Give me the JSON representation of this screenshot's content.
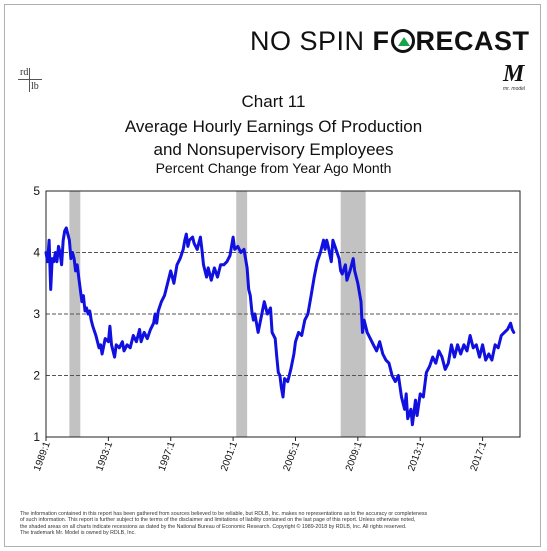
{
  "brand": {
    "part1": "NO SPIN",
    "part2_pre": "F",
    "part2_post": "RECAST",
    "logo_left": "rd",
    "logo_right": "lb",
    "mr_model_mark": "M",
    "mr_model_sub": "mr. model"
  },
  "chart_data": {
    "type": "line",
    "title": "Chart 11",
    "subtitle_line1": "Average Hourly Earnings Of Production",
    "subtitle_line2": "and Nonsupervisory Employees",
    "subtitle_line3": "Percent Change from Year Ago Month",
    "xlabel": "",
    "ylabel": "",
    "ylim": [
      1,
      5
    ],
    "xlim": [
      1989.0,
      2019.4
    ],
    "yticks": [
      "1",
      "2",
      "3",
      "4",
      "5"
    ],
    "ytick_values": [
      1,
      2,
      3,
      4,
      5
    ],
    "xticks": [
      "1989:1",
      "1993:1",
      "1997:1",
      "2001:1",
      "2005:1",
      "2009:1",
      "2013:1",
      "2017:1"
    ],
    "xtick_values": [
      1989,
      1993,
      1997,
      2001,
      2005,
      2009,
      2013,
      2017
    ],
    "grid": true,
    "line_color": "#1010e0",
    "recession_color": "#c2c2c2",
    "recessions": [
      [
        1990.5,
        1991.2
      ],
      [
        2001.2,
        2001.9
      ],
      [
        2007.9,
        2009.5
      ]
    ],
    "series": [
      {
        "values": [
          [
            1989.0,
            4.0
          ],
          [
            1989.1,
            3.85
          ],
          [
            1989.2,
            4.2
          ],
          [
            1989.3,
            3.4
          ],
          [
            1989.4,
            3.9
          ],
          [
            1989.5,
            3.85
          ],
          [
            1989.6,
            4.0
          ],
          [
            1989.7,
            3.85
          ],
          [
            1989.8,
            4.1
          ],
          [
            1989.9,
            4.0
          ],
          [
            1990.0,
            3.8
          ],
          [
            1990.1,
            4.2
          ],
          [
            1990.2,
            4.35
          ],
          [
            1990.3,
            4.4
          ],
          [
            1990.4,
            4.3
          ],
          [
            1990.5,
            4.2
          ],
          [
            1990.6,
            3.9
          ],
          [
            1990.7,
            4.0
          ],
          [
            1990.8,
            3.9
          ],
          [
            1990.9,
            3.7
          ],
          [
            1991.0,
            3.8
          ],
          [
            1991.1,
            3.6
          ],
          [
            1991.2,
            3.4
          ],
          [
            1991.3,
            3.2
          ],
          [
            1991.4,
            3.3
          ],
          [
            1991.5,
            3.05
          ],
          [
            1991.6,
            3.1
          ],
          [
            1991.7,
            3.0
          ],
          [
            1991.8,
            3.05
          ],
          [
            1991.9,
            2.9
          ],
          [
            1992.0,
            2.8
          ],
          [
            1992.2,
            2.65
          ],
          [
            1992.4,
            2.45
          ],
          [
            1992.5,
            2.5
          ],
          [
            1992.6,
            2.35
          ],
          [
            1992.8,
            2.6
          ],
          [
            1993.0,
            2.55
          ],
          [
            1993.1,
            2.8
          ],
          [
            1993.2,
            2.5
          ],
          [
            1993.4,
            2.3
          ],
          [
            1993.5,
            2.5
          ],
          [
            1993.7,
            2.45
          ],
          [
            1993.9,
            2.55
          ],
          [
            1994.0,
            2.4
          ],
          [
            1994.2,
            2.5
          ],
          [
            1994.4,
            2.45
          ],
          [
            1994.6,
            2.65
          ],
          [
            1994.8,
            2.55
          ],
          [
            1995.0,
            2.75
          ],
          [
            1995.1,
            2.55
          ],
          [
            1995.3,
            2.7
          ],
          [
            1995.5,
            2.6
          ],
          [
            1995.7,
            2.75
          ],
          [
            1995.9,
            2.85
          ],
          [
            1996.0,
            3.0
          ],
          [
            1996.1,
            2.85
          ],
          [
            1996.2,
            3.05
          ],
          [
            1996.4,
            3.2
          ],
          [
            1996.6,
            3.3
          ],
          [
            1996.8,
            3.5
          ],
          [
            1997.0,
            3.7
          ],
          [
            1997.2,
            3.5
          ],
          [
            1997.4,
            3.8
          ],
          [
            1997.6,
            3.9
          ],
          [
            1997.8,
            4.05
          ],
          [
            1997.9,
            4.2
          ],
          [
            1998.0,
            4.3
          ],
          [
            1998.1,
            4.1
          ],
          [
            1998.2,
            4.2
          ],
          [
            1998.4,
            4.25
          ],
          [
            1998.5,
            4.15
          ],
          [
            1998.7,
            4.05
          ],
          [
            1998.9,
            4.25
          ],
          [
            1999.0,
            4.05
          ],
          [
            1999.1,
            3.8
          ],
          [
            1999.3,
            3.6
          ],
          [
            1999.4,
            3.75
          ],
          [
            1999.6,
            3.55
          ],
          [
            1999.8,
            3.75
          ],
          [
            2000.0,
            3.6
          ],
          [
            2000.2,
            3.8
          ],
          [
            2000.4,
            3.8
          ],
          [
            2000.6,
            3.85
          ],
          [
            2000.8,
            3.95
          ],
          [
            2001.0,
            4.25
          ],
          [
            2001.1,
            4.05
          ],
          [
            2001.3,
            4.1
          ],
          [
            2001.5,
            4.0
          ],
          [
            2001.7,
            4.05
          ],
          [
            2001.9,
            3.75
          ],
          [
            2002.0,
            3.4
          ],
          [
            2002.1,
            3.3
          ],
          [
            2002.2,
            3.05
          ],
          [
            2002.3,
            2.9
          ],
          [
            2002.4,
            3.0
          ],
          [
            2002.6,
            2.7
          ],
          [
            2002.8,
            2.95
          ],
          [
            2003.0,
            3.2
          ],
          [
            2003.2,
            3.0
          ],
          [
            2003.4,
            3.1
          ],
          [
            2003.5,
            2.7
          ],
          [
            2003.7,
            2.6
          ],
          [
            2003.8,
            2.3
          ],
          [
            2003.9,
            2.05
          ],
          [
            2004.0,
            2.0
          ],
          [
            2004.1,
            1.8
          ],
          [
            2004.2,
            1.65
          ],
          [
            2004.3,
            1.95
          ],
          [
            2004.5,
            1.9
          ],
          [
            2004.7,
            2.1
          ],
          [
            2004.9,
            2.35
          ],
          [
            2005.0,
            2.55
          ],
          [
            2005.2,
            2.7
          ],
          [
            2005.4,
            2.65
          ],
          [
            2005.6,
            2.9
          ],
          [
            2005.8,
            3.0
          ],
          [
            2006.0,
            3.3
          ],
          [
            2006.2,
            3.6
          ],
          [
            2006.4,
            3.85
          ],
          [
            2006.6,
            4.0
          ],
          [
            2006.8,
            4.2
          ],
          [
            2006.9,
            4.05
          ],
          [
            2007.0,
            4.2
          ],
          [
            2007.1,
            4.1
          ],
          [
            2007.3,
            3.85
          ],
          [
            2007.4,
            4.2
          ],
          [
            2007.6,
            4.05
          ],
          [
            2007.8,
            3.9
          ],
          [
            2007.9,
            3.7
          ],
          [
            2008.0,
            3.65
          ],
          [
            2008.2,
            3.8
          ],
          [
            2008.3,
            3.55
          ],
          [
            2008.5,
            3.7
          ],
          [
            2008.7,
            3.9
          ],
          [
            2008.8,
            3.7
          ],
          [
            2009.0,
            3.5
          ],
          [
            2009.2,
            3.2
          ],
          [
            2009.3,
            2.7
          ],
          [
            2009.4,
            2.9
          ],
          [
            2009.6,
            2.7
          ],
          [
            2009.8,
            2.6
          ],
          [
            2010.0,
            2.5
          ],
          [
            2010.2,
            2.4
          ],
          [
            2010.4,
            2.55
          ],
          [
            2010.6,
            2.35
          ],
          [
            2010.8,
            2.25
          ],
          [
            2011.0,
            2.2
          ],
          [
            2011.2,
            2.0
          ],
          [
            2011.4,
            1.9
          ],
          [
            2011.6,
            2.0
          ],
          [
            2011.8,
            1.65
          ],
          [
            2012.0,
            1.45
          ],
          [
            2012.1,
            1.7
          ],
          [
            2012.2,
            1.3
          ],
          [
            2012.4,
            1.45
          ],
          [
            2012.5,
            1.2
          ],
          [
            2012.7,
            1.6
          ],
          [
            2012.8,
            1.35
          ],
          [
            2013.0,
            1.7
          ],
          [
            2013.2,
            1.65
          ],
          [
            2013.4,
            2.05
          ],
          [
            2013.6,
            2.15
          ],
          [
            2013.8,
            2.3
          ],
          [
            2014.0,
            2.2
          ],
          [
            2014.2,
            2.4
          ],
          [
            2014.4,
            2.3
          ],
          [
            2014.6,
            2.1
          ],
          [
            2014.8,
            2.2
          ],
          [
            2015.0,
            2.5
          ],
          [
            2015.2,
            2.3
          ],
          [
            2015.4,
            2.5
          ],
          [
            2015.6,
            2.35
          ],
          [
            2015.8,
            2.5
          ],
          [
            2016.0,
            2.4
          ],
          [
            2016.2,
            2.65
          ],
          [
            2016.4,
            2.45
          ],
          [
            2016.6,
            2.5
          ],
          [
            2016.8,
            2.3
          ],
          [
            2017.0,
            2.5
          ],
          [
            2017.2,
            2.25
          ],
          [
            2017.4,
            2.35
          ],
          [
            2017.6,
            2.25
          ],
          [
            2017.8,
            2.5
          ],
          [
            2018.0,
            2.45
          ],
          [
            2018.2,
            2.65
          ],
          [
            2018.4,
            2.7
          ],
          [
            2018.6,
            2.75
          ],
          [
            2018.8,
            2.85
          ],
          [
            2018.9,
            2.75
          ],
          [
            2019.0,
            2.7
          ]
        ]
      }
    ]
  },
  "footnote": {
    "line1": "The information contained in this report has been gathered from sources believed to be reliable, but RDLB, Inc. makes no representations as to the accuracy or completeness",
    "line2": "of such information. This report is further subject to the terms of the disclaimer and limitations of liability contained on the last page of this report.  Unless otherwise noted,",
    "line3": "the shaded areas on all charts indicate recessions as dated by the National Bureau of Economic Research. Copyright © 1989-2018 by RDLB, Inc. All rights reserved.",
    "line4": "The trademark Mr. Model is owned by RDLB, Inc."
  }
}
